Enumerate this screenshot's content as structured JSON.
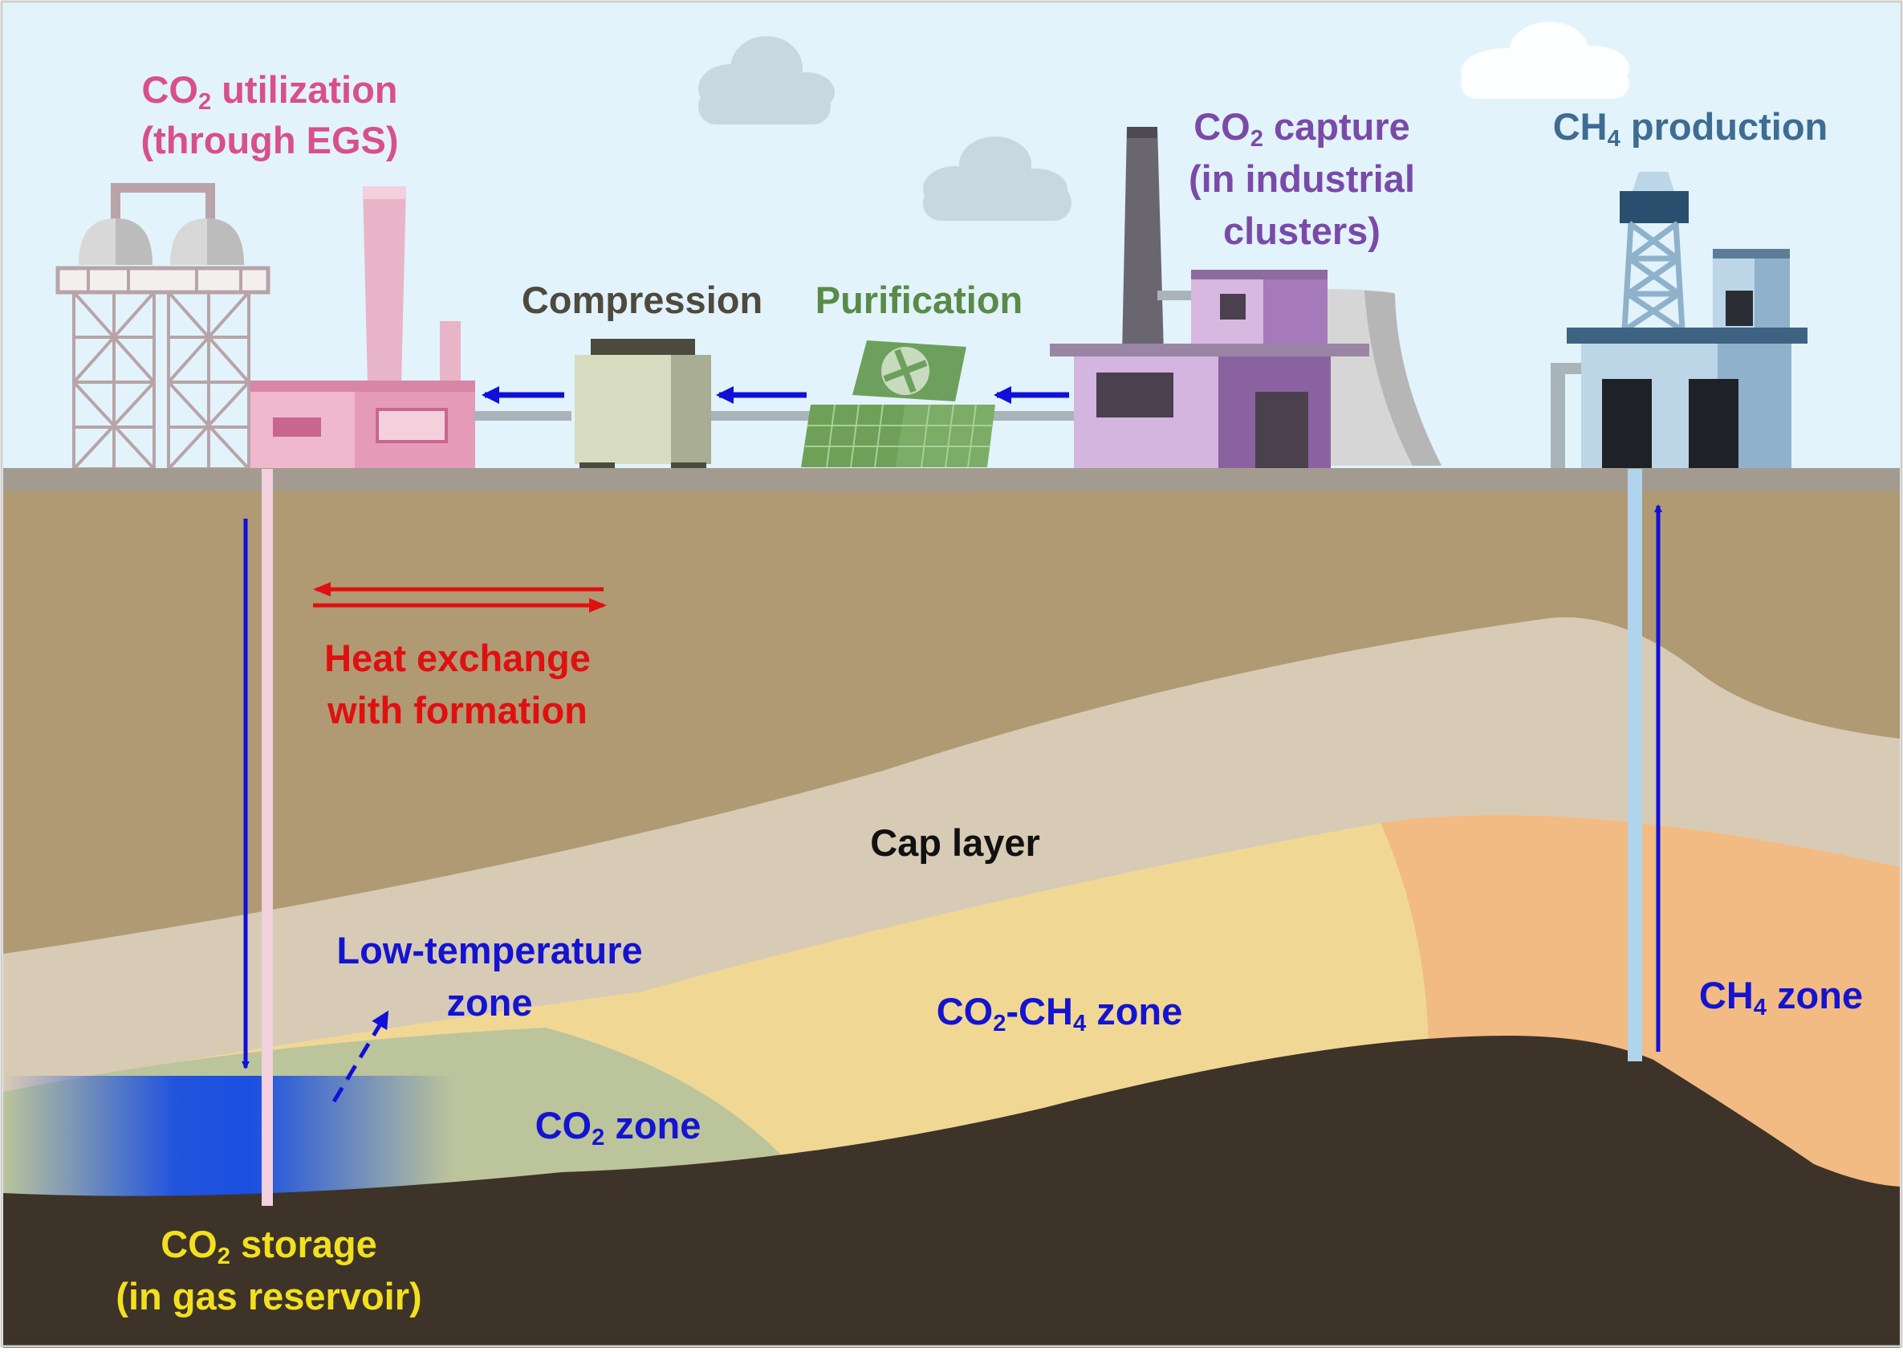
{
  "colors": {
    "sky": "#e2f3fb",
    "ground_surface": "#a49b90",
    "overburden": "#b09a74",
    "cap_layer": "#d8cbb5",
    "reservoir_mixed": "#f0d894",
    "reservoir_ch4": "#f2bb84",
    "reservoir_co2": "#bcc49c",
    "bedrock": "#3e3328",
    "low_temp_zone": "#1a4fe0",
    "flow_arrow": "#1010d8",
    "heat_arrow": "#e01010",
    "utilization_text": "#d8508a",
    "compression_text": "#4e4a3e",
    "purification_text": "#5a8a48",
    "capture_text": "#7a4aa8",
    "production_text": "#3e6c92",
    "zone_text": "#1414d0",
    "storage_text": "#f2e020"
  },
  "labels": {
    "utilization": {
      "line1_a": "CO",
      "line1_sub": "2",
      "line1_b": " utilization",
      "line2": "(through EGS)"
    },
    "compression": "Compression",
    "purification": "Purification",
    "capture": {
      "line1_a": "CO",
      "line1_sub": "2",
      "line1_b": " capture",
      "line2": "(in industrial",
      "line3": "clusters)"
    },
    "production": {
      "a": "CH",
      "sub": "4",
      "b": " production"
    },
    "heat_exchange": {
      "line1": "Heat exchange",
      "line2": "with formation"
    },
    "cap_layer": "Cap layer",
    "low_temperature": {
      "line1": "Low-temperature",
      "line2": "zone"
    },
    "co2_ch4_zone": {
      "a": "CO",
      "sub1": "2",
      "b": "-CH",
      "sub2": "4",
      "c": " zone"
    },
    "ch4_zone": {
      "a": "CH",
      "sub": "4",
      "b": " zone"
    },
    "co2_zone": {
      "a": "CO",
      "sub": "2",
      "b": " zone"
    },
    "storage": {
      "line1_a": "CO",
      "line1_sub": "2",
      "line1_b": " storage",
      "line2": "(in gas reservoir)"
    }
  },
  "icons": [
    "cloud-icon",
    "cloud-icon",
    "cloud-icon",
    "egs-plant-icon",
    "compressor-icon",
    "purifier-icon",
    "industrial-plant-icon",
    "gas-well-icon"
  ]
}
